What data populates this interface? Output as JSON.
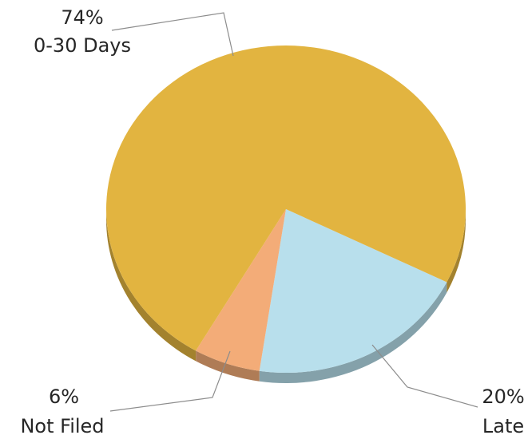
{
  "chart_data": {
    "type": "pie",
    "style": "3d",
    "slices": [
      {
        "label": "0-30 Days",
        "value": 74,
        "display": "74%",
        "color": "#E2B440"
      },
      {
        "label": "Late",
        "value": 20,
        "display": "20%",
        "color": "#B8DFEC"
      },
      {
        "label": "Not Filed",
        "value": 6,
        "display": "6%",
        "color": "#F3AC78"
      }
    ],
    "legend": "none"
  }
}
